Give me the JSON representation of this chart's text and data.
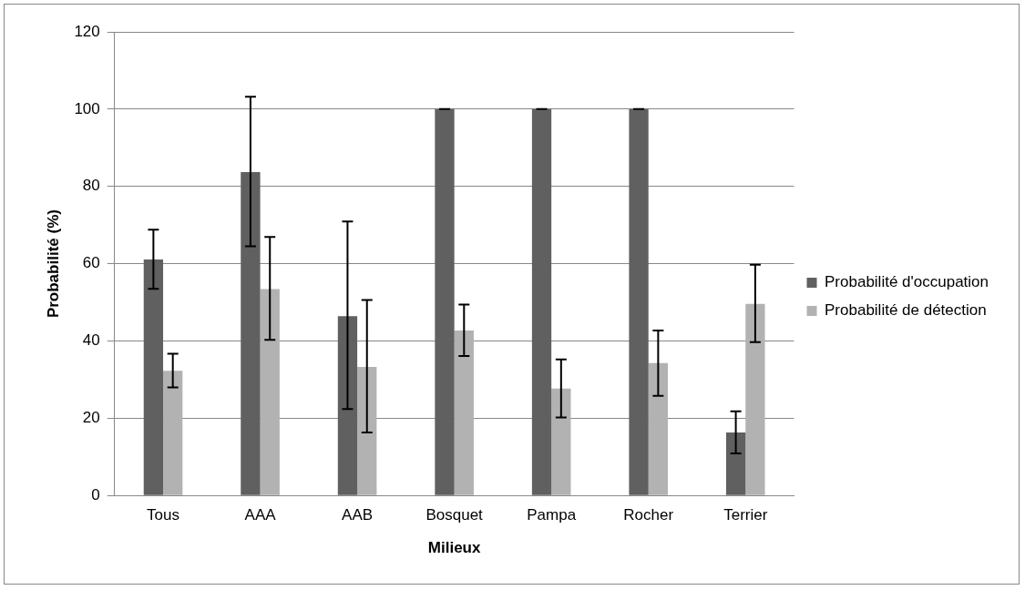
{
  "chart_data": {
    "type": "bar",
    "xlabel": "Milieux",
    "ylabel": "Probabilité (%)",
    "categories": [
      "Tous",
      "AAA",
      "AAB",
      "Bosquet",
      "Pampa",
      "Rocher",
      "Terrier"
    ],
    "series": [
      {
        "name": "Probabilité d'occupation",
        "color": "#606060",
        "values": [
          61.1,
          83.7,
          46.4,
          100,
          100,
          100,
          16.3
        ],
        "errors": [
          [
            53.5,
            68.8
          ],
          [
            64.5,
            103.2
          ],
          [
            22.4,
            70.9
          ],
          [
            100,
            100
          ],
          [
            100,
            100
          ],
          [
            100,
            100
          ],
          [
            10.9,
            21.8
          ]
        ]
      },
      {
        "name": "Probabilité de détection",
        "color": "#b2b2b2",
        "values": [
          32.3,
          53.4,
          33.3,
          42.7,
          27.7,
          34.3,
          49.6
        ],
        "errors": [
          [
            28,
            36.7
          ],
          [
            40.3,
            66.9
          ],
          [
            16.3,
            50.6
          ],
          [
            36.1,
            49.4
          ],
          [
            20.2,
            35.2
          ],
          [
            25.8,
            42.7
          ],
          [
            39.7,
            59.7
          ]
        ]
      }
    ],
    "ylim": [
      0,
      120
    ],
    "yticks": [
      0,
      20,
      40,
      60,
      80,
      100,
      120
    ],
    "grid": "y",
    "legend": "right"
  }
}
